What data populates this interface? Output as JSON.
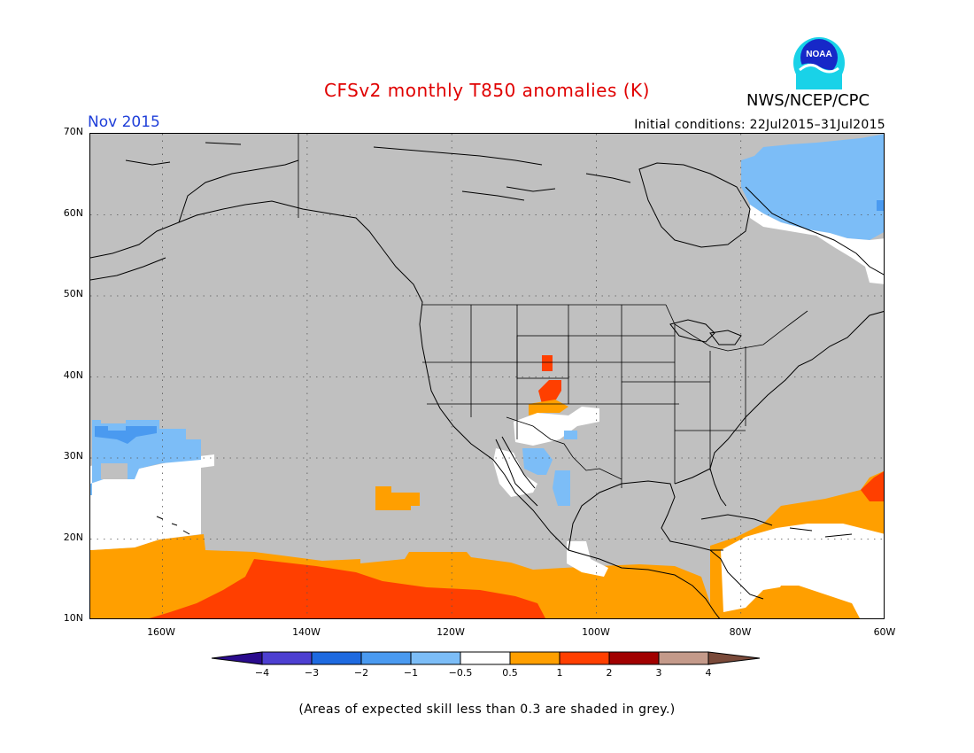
{
  "title": "CFSv2 monthly T850 anomalies (K)",
  "agency": "NWS/NCEP/CPC",
  "logo_text": "NOAA",
  "forecast_month": "Nov 2015",
  "initial_conditions": "Initial conditions: 22Jul2015–31Jul2015",
  "footnote": "(Areas of expected skill less than 0.3 are shaded in grey.)",
  "map": {
    "projection": "lat-lon",
    "lon_range": [
      -170,
      -60
    ],
    "lat_range": [
      10,
      70
    ],
    "gridlines": "dotted",
    "mask_color": "#c0c0c0",
    "lat_labels": [
      "70N",
      "60N",
      "50N",
      "40N",
      "30N",
      "20N",
      "10N"
    ],
    "lon_labels": [
      "160W",
      "140W",
      "120W",
      "100W",
      "80W",
      "60W"
    ]
  },
  "colorbar": {
    "labels": [
      "−4",
      "−3",
      "−2",
      "−1",
      "−0.5",
      "0.5",
      "1",
      "2",
      "3",
      "4"
    ],
    "colors": [
      "#2a0b8d",
      "#4d3fd1",
      "#1e6ae0",
      "#4a9af0",
      "#7cbdf7",
      "#ffffff",
      "#ff9f00",
      "#ff3f00",
      "#a10000",
      "#c49a8a",
      "#7a4a3a"
    ]
  }
}
